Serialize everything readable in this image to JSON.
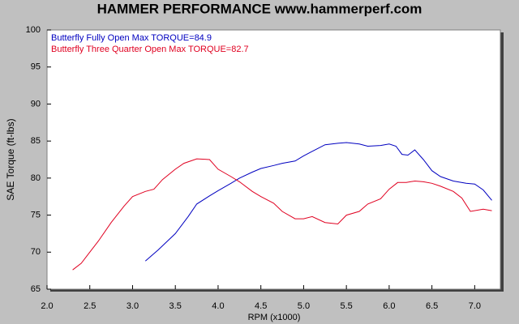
{
  "chart_data": {
    "type": "line",
    "title": "HAMMER PERFORMANCE www.hammerperf.com",
    "x_label": "RPM (x1000)",
    "y_label": "SAE Torque (ft-lbs)",
    "xlim": [
      2.0,
      7.3
    ],
    "ylim": [
      65,
      100
    ],
    "xticks": [
      {
        "value": 2,
        "label": "2.0"
      },
      2.5,
      {
        "value": 3,
        "label": "3.0"
      },
      3.5,
      {
        "value": 4,
        "label": "4.0"
      },
      4.5,
      {
        "value": 5,
        "label": "5.0"
      },
      5.5,
      {
        "value": 6,
        "label": "6.0"
      },
      6.5,
      {
        "value": 7,
        "label": "7.0"
      }
    ],
    "yticks": [
      65,
      70,
      75,
      80,
      85,
      90,
      95,
      100
    ],
    "series": [
      {
        "name": "Butterfly Fully Open  Max TORQUE=84.9",
        "color": "#0000c0",
        "x": [
          3.15,
          3.3,
          3.5,
          3.65,
          3.75,
          3.9,
          4.0,
          4.15,
          4.25,
          4.4,
          4.5,
          4.65,
          4.75,
          4.9,
          5.0,
          5.15,
          5.25,
          5.4,
          5.5,
          5.65,
          5.75,
          5.9,
          6.0,
          6.08,
          6.15,
          6.22,
          6.3,
          6.4,
          6.5,
          6.6,
          6.75,
          6.9,
          7.0,
          7.1,
          7.2
        ],
        "values": [
          68.8,
          70.3,
          72.5,
          74.8,
          76.5,
          77.6,
          78.3,
          79.3,
          80.0,
          80.8,
          81.3,
          81.7,
          82.0,
          82.3,
          83.0,
          83.9,
          84.5,
          84.7,
          84.8,
          84.6,
          84.3,
          84.4,
          84.6,
          84.3,
          83.2,
          83.1,
          83.8,
          82.5,
          81.0,
          80.2,
          79.6,
          79.3,
          79.2,
          78.4,
          77.0
        ]
      },
      {
        "name": "Butterfly Three Quarter Open  Max TORQUE=82.7",
        "color": "#e00020",
        "x": [
          2.3,
          2.4,
          2.5,
          2.6,
          2.75,
          2.9,
          3.0,
          3.15,
          3.25,
          3.35,
          3.5,
          3.6,
          3.75,
          3.9,
          4.0,
          4.15,
          4.25,
          4.4,
          4.5,
          4.65,
          4.75,
          4.9,
          5.0,
          5.1,
          5.25,
          5.4,
          5.5,
          5.65,
          5.75,
          5.9,
          6.0,
          6.1,
          6.2,
          6.3,
          6.4,
          6.5,
          6.6,
          6.75,
          6.85,
          6.95,
          7.1,
          7.2
        ],
        "values": [
          67.6,
          68.5,
          70.0,
          71.5,
          74.0,
          76.2,
          77.5,
          78.2,
          78.5,
          79.8,
          81.2,
          82.0,
          82.6,
          82.5,
          81.2,
          80.2,
          79.5,
          78.2,
          77.5,
          76.6,
          75.5,
          74.5,
          74.5,
          74.8,
          74.0,
          73.8,
          75.0,
          75.5,
          76.5,
          77.2,
          78.5,
          79.4,
          79.4,
          79.6,
          79.5,
          79.3,
          78.9,
          78.2,
          77.3,
          75.5,
          75.8,
          75.6
        ]
      }
    ]
  }
}
